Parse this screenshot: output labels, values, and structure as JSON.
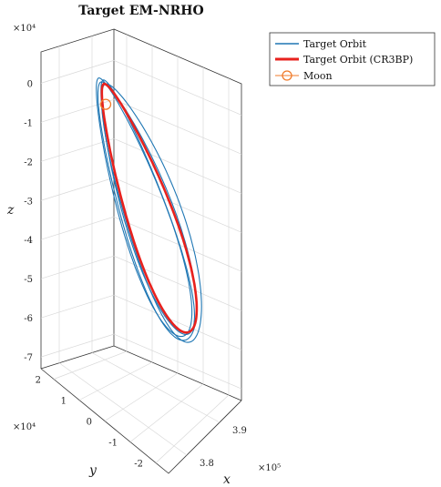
{
  "chart_data": {
    "type": "line",
    "projection": "3d",
    "title": "Target EM-NRHO",
    "xlabel": "x",
    "ylabel": "y",
    "zlabel": "z",
    "x_scale_label": "×10⁵",
    "y_scale_label": "×10⁴",
    "z_scale_label": "×10⁴",
    "xlim": [
      3.75,
      3.95
    ],
    "ylim": [
      -2.2,
      2.2
    ],
    "zlim": [
      -7.3,
      0.8
    ],
    "x_ticks": [
      "3.8",
      "3.9"
    ],
    "y_ticks": [
      "2",
      "1",
      "0",
      "-1",
      "-2"
    ],
    "z_ticks": [
      "0",
      "-1",
      "-2",
      "-3",
      "-4",
      "-5",
      "-6",
      "-7"
    ],
    "grid": true,
    "legend_position": "top-right",
    "legend": [
      {
        "label": "Target Orbit",
        "color": "#1f77b4",
        "style": "line"
      },
      {
        "label": "Target Orbit (CR3BP)",
        "color": "#e8211d",
        "style": "thick-line"
      },
      {
        "label": "Moon",
        "color": "#f07b2b",
        "style": "circle-marker"
      }
    ],
    "series": [
      {
        "name": "Target Orbit",
        "color": "#1f77b4",
        "description_points": "perilune near z≈-0.5e4, apolune near z≈-7.1e4",
        "orbits": [
          {
            "x_center": 3.86,
            "y_amp": 1.3,
            "z_top": -0.45,
            "z_bottom": -7.05,
            "phase": 0.0
          },
          {
            "x_center": 3.865,
            "y_amp": 1.45,
            "z_top": -0.55,
            "z_bottom": -7.15,
            "phase": 0.08
          },
          {
            "x_center": 3.855,
            "y_amp": 1.2,
            "z_top": -0.5,
            "z_bottom": -7.0,
            "phase": -0.06
          },
          {
            "x_center": 3.87,
            "y_amp": 1.55,
            "z_top": -0.6,
            "z_bottom": -7.2,
            "phase": 0.14
          }
        ]
      },
      {
        "name": "Target Orbit (CR3BP)",
        "color": "#e8211d",
        "orbits": [
          {
            "x_center": 3.86,
            "y_amp": 1.25,
            "z_top": -0.6,
            "z_bottom": -6.95,
            "phase": 0.03
          }
        ]
      },
      {
        "name": "Moon",
        "color": "#f07b2b",
        "point": {
          "x": 3.844,
          "y": 0.0,
          "z": -1.1
        }
      }
    ]
  }
}
